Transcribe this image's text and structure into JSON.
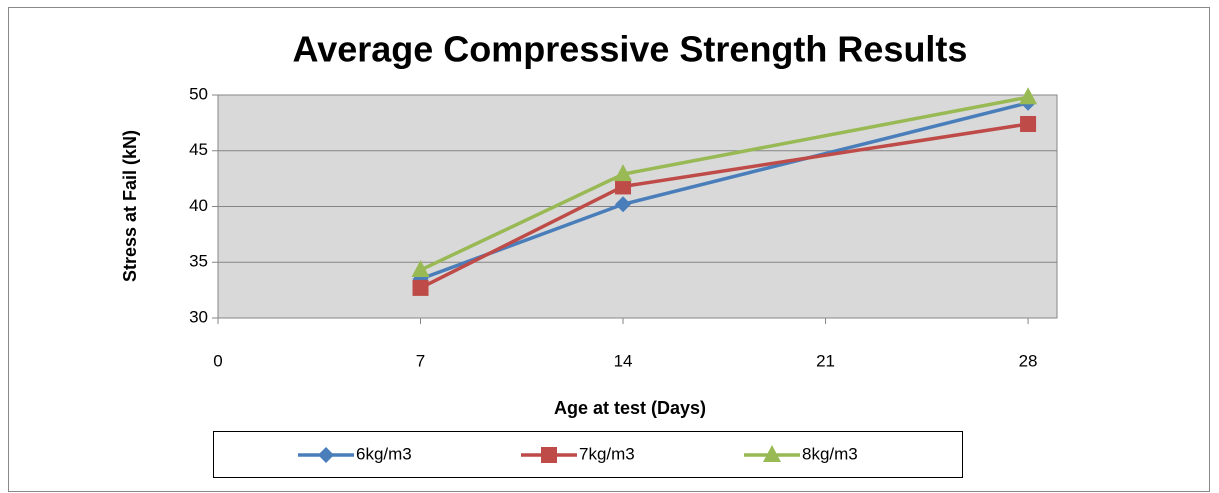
{
  "chart_data": {
    "type": "line",
    "title": "Average Compressive Strength Results",
    "x_label": "Age at test (Days)",
    "y_label": "Stress at Fail (kN)",
    "x": [
      7,
      14,
      28
    ],
    "series": [
      {
        "name": "6kg/m3",
        "color": "#4a7ebb",
        "marker": "diamond",
        "values": [
          33.5,
          40.2,
          49.3
        ]
      },
      {
        "name": "7kg/m3",
        "color": "#be4b48",
        "marker": "square",
        "values": [
          32.7,
          41.8,
          47.4
        ]
      },
      {
        "name": "8kg/m3",
        "color": "#98b954",
        "marker": "triangle",
        "values": [
          34.3,
          42.9,
          49.8
        ]
      }
    ],
    "xlim": [
      0,
      29
    ],
    "xticks": [
      0,
      7,
      14,
      21,
      28
    ],
    "ylim": [
      30,
      50
    ],
    "yticks": [
      30,
      35,
      40,
      45,
      50
    ],
    "grid": true,
    "legend": "bottom"
  }
}
